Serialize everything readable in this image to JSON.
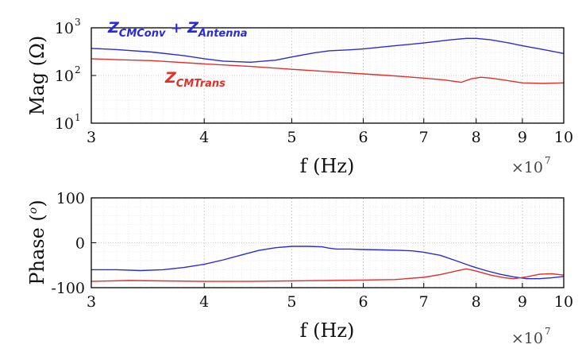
{
  "chart_data": [
    {
      "type": "line",
      "xscale": "log",
      "yscale": "log",
      "xlim": [
        30000000,
        100000000
      ],
      "ylim": [
        10,
        1000
      ],
      "grid": true,
      "xlabel": "f (Hz)",
      "x_multiplier": {
        "prefix": "×10",
        "exponent": "7"
      },
      "ylabel": "Mag (Ω)",
      "xticks": [
        {
          "value": 30000000,
          "label": "3"
        },
        {
          "value": 40000000,
          "label": "4"
        },
        {
          "value": 50000000,
          "label": "5"
        },
        {
          "value": 60000000,
          "label": "6"
        },
        {
          "value": 70000000,
          "label": "7"
        },
        {
          "value": 80000000,
          "label": "8"
        },
        {
          "value": 90000000,
          "label": "9"
        },
        {
          "value": 100000000,
          "label": "10"
        }
      ],
      "yticks": [
        {
          "value": 10,
          "base": "10",
          "exp": "1"
        },
        {
          "value": 100,
          "base": "10",
          "exp": "2"
        },
        {
          "value": 1000,
          "base": "10",
          "exp": "3"
        }
      ],
      "series": [
        {
          "color": "#2b2bd6",
          "x": [
            30000000,
            32000000,
            35000000,
            38000000,
            40000000,
            42000000,
            45000000,
            48000000,
            50000000,
            53000000,
            55000000,
            58000000,
            60000000,
            65000000,
            70000000,
            75000000,
            78000000,
            80000000,
            83000000,
            87000000,
            90000000,
            95000000,
            100000000
          ],
          "y": [
            370,
            350,
            310,
            260,
            225,
            200,
            190,
            210,
            245,
            300,
            330,
            345,
            360,
            420,
            480,
            560,
            600,
            600,
            560,
            480,
            420,
            350,
            290
          ],
          "label_parts": {
            "z1": "Z",
            "sub1": "CMConv",
            "plus": " + ",
            "z2": "Z",
            "sub2": "Antenna"
          }
        },
        {
          "color": "#e0302a",
          "x": [
            30000000,
            32000000,
            35000000,
            40000000,
            45000000,
            50000000,
            55000000,
            60000000,
            65000000,
            70000000,
            74000000,
            77000000,
            79000000,
            81000000,
            83000000,
            86000000,
            90000000,
            95000000,
            100000000
          ],
          "y": [
            225,
            215,
            205,
            175,
            155,
            135,
            120,
            108,
            98,
            88,
            80,
            72,
            85,
            92,
            88,
            80,
            70,
            68,
            70
          ],
          "label_parts": {
            "z": "Z",
            "sub": "CMTrans"
          }
        }
      ]
    },
    {
      "type": "line",
      "xscale": "log",
      "xlim": [
        30000000,
        100000000
      ],
      "ylim": [
        -100,
        100
      ],
      "grid": true,
      "xlabel": "f (Hz)",
      "x_multiplier": {
        "prefix": "×10",
        "exponent": "7"
      },
      "ylabel": "Phase (o)",
      "ylabel_parts": {
        "pre": "Phase (",
        "sup": "o",
        "post": ")"
      },
      "xticks": [
        {
          "value": 30000000,
          "label": "3"
        },
        {
          "value": 40000000,
          "label": "4"
        },
        {
          "value": 50000000,
          "label": "5"
        },
        {
          "value": 60000000,
          "label": "6"
        },
        {
          "value": 70000000,
          "label": "7"
        },
        {
          "value": 80000000,
          "label": "8"
        },
        {
          "value": 90000000,
          "label": "9"
        },
        {
          "value": 100000000,
          "label": "10"
        }
      ],
      "yticks": [
        {
          "value": 100,
          "label": "100"
        },
        {
          "value": 0,
          "label": "0"
        },
        {
          "value": -100,
          "label": "-100"
        }
      ],
      "series": [
        {
          "color": "#2b2bd6",
          "x": [
            30000000,
            32000000,
            34000000,
            36000000,
            38000000,
            40000000,
            42000000,
            44000000,
            46000000,
            48000000,
            50000000,
            52000000,
            54000000,
            55000000,
            56000000,
            58000000,
            60000000,
            63000000,
            66000000,
            68000000,
            70000000,
            73000000,
            76000000,
            79000000,
            82000000,
            85000000,
            88000000,
            91000000,
            94000000,
            97000000,
            100000000
          ],
          "y": [
            -60,
            -60,
            -62,
            -60,
            -55,
            -48,
            -38,
            -27,
            -17,
            -11,
            -8,
            -8,
            -9,
            -12,
            -14,
            -14,
            -15,
            -16,
            -17,
            -18,
            -21,
            -28,
            -40,
            -52,
            -62,
            -70,
            -76,
            -80,
            -80,
            -78,
            -75
          ]
        },
        {
          "color": "#e0302a",
          "x": [
            30000000,
            33000000,
            36000000,
            40000000,
            45000000,
            50000000,
            55000000,
            60000000,
            65000000,
            70000000,
            73000000,
            76000000,
            78000000,
            80000000,
            83000000,
            86000000,
            88000000,
            91000000,
            94000000,
            97000000,
            100000000
          ],
          "y": [
            -86,
            -84,
            -85,
            -86,
            -86,
            -85,
            -84,
            -83,
            -82,
            -77,
            -71,
            -63,
            -58,
            -63,
            -72,
            -78,
            -80,
            -76,
            -70,
            -69,
            -72
          ]
        }
      ]
    }
  ]
}
